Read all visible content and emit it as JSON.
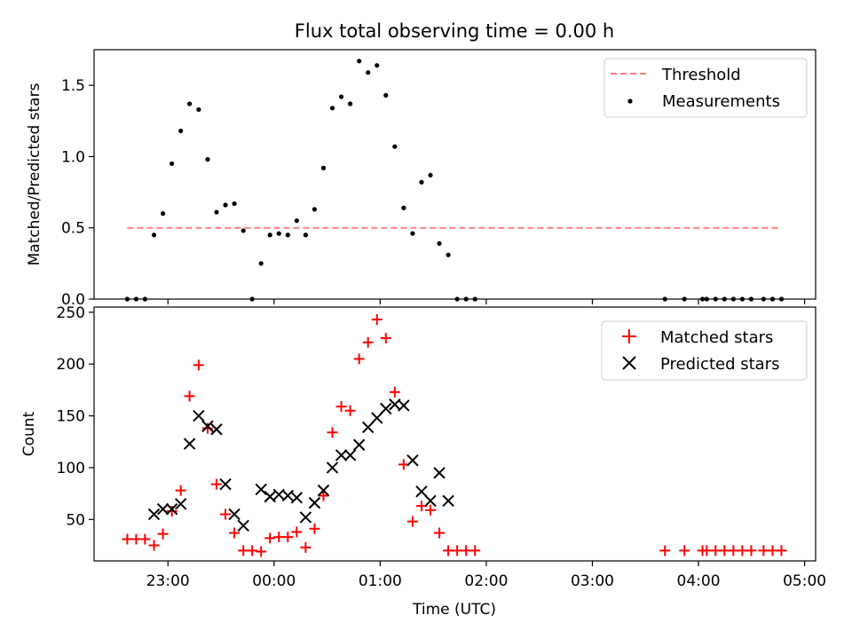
{
  "figure": {
    "title": "Flux total observing time = 0.00 h",
    "xlabel": "Time (UTC)",
    "x_ticks": [
      {
        "t": 22.9962,
        "label": "23:00"
      },
      {
        "t": 23.9962,
        "label": "00:00"
      },
      {
        "t": 24.9962,
        "label": "01:00"
      },
      {
        "t": 25.9962,
        "label": "02:00"
      },
      {
        "t": 26.9962,
        "label": "03:00"
      },
      {
        "t": 27.9962,
        "label": "04:00"
      },
      {
        "t": 28.9962,
        "label": "05:00"
      }
    ],
    "xlim": [
      22.3,
      29.1
    ]
  },
  "chart_data": [
    {
      "type": "scatter",
      "ylabel": "Matched/Predicted stars",
      "ylim": [
        0,
        1.75
      ],
      "y_ticks": [
        0.0,
        0.5,
        1.0,
        1.5
      ],
      "y_tick_labels": [
        "0.0",
        "0.5",
        "1.0",
        "1.5"
      ],
      "legend_position": "top-right",
      "threshold": {
        "name": "Threshold",
        "y": 0.5,
        "x": [
          22.613,
          28.78
        ],
        "color": "#ff7f7f"
      },
      "series": [
        {
          "name": "Measurements",
          "color": "#000000",
          "points": [
            [
              22.613,
              0.0
            ],
            [
              22.697,
              0.0
            ],
            [
              22.78,
              0.0
            ],
            [
              22.865,
              0.45
            ],
            [
              22.949,
              0.6
            ],
            [
              23.033,
              0.95
            ],
            [
              23.117,
              1.18
            ],
            [
              23.2,
              1.37
            ],
            [
              23.286,
              1.33
            ],
            [
              23.37,
              0.98
            ],
            [
              23.454,
              0.61
            ],
            [
              23.538,
              0.66
            ],
            [
              23.622,
              0.67
            ],
            [
              23.707,
              0.48
            ],
            [
              23.79,
              0.0
            ],
            [
              23.874,
              0.25
            ],
            [
              23.958,
              0.45
            ],
            [
              24.042,
              0.46
            ],
            [
              24.126,
              0.45
            ],
            [
              24.21,
              0.55
            ],
            [
              24.294,
              0.45
            ],
            [
              24.378,
              0.63
            ],
            [
              24.462,
              0.92
            ],
            [
              24.546,
              1.34
            ],
            [
              24.63,
              1.42
            ],
            [
              24.714,
              1.37
            ],
            [
              24.798,
              1.67
            ],
            [
              24.882,
              1.59
            ],
            [
              24.966,
              1.64
            ],
            [
              25.05,
              1.43
            ],
            [
              25.134,
              1.07
            ],
            [
              25.218,
              0.64
            ],
            [
              25.302,
              0.46
            ],
            [
              25.386,
              0.82
            ],
            [
              25.47,
              0.87
            ],
            [
              25.554,
              0.39
            ],
            [
              25.638,
              0.31
            ],
            [
              25.722,
              0.0
            ],
            [
              25.806,
              0.0
            ],
            [
              25.89,
              0.0
            ],
            [
              27.68,
              0.0
            ],
            [
              27.864,
              0.0
            ],
            [
              28.034,
              0.0
            ],
            [
              28.074,
              0.0
            ],
            [
              28.157,
              0.0
            ],
            [
              28.241,
              0.0
            ],
            [
              28.325,
              0.0
            ],
            [
              28.409,
              0.0
            ],
            [
              28.493,
              0.0
            ],
            [
              28.61,
              0.0
            ],
            [
              28.694,
              0.0
            ],
            [
              28.778,
              0.0
            ]
          ]
        }
      ]
    },
    {
      "type": "scatter",
      "ylabel": "Count",
      "ylim": [
        10,
        255
      ],
      "y_ticks": [
        50,
        100,
        150,
        200,
        250
      ],
      "y_tick_labels": [
        "50",
        "100",
        "150",
        "200",
        "250"
      ],
      "legend_position": "top-right",
      "series": [
        {
          "name": "Matched stars",
          "marker": "plus",
          "color": "#ff0000",
          "points": [
            [
              22.613,
              31
            ],
            [
              22.697,
              31
            ],
            [
              22.78,
              31
            ],
            [
              22.865,
              25
            ],
            [
              22.949,
              36
            ],
            [
              23.033,
              58
            ],
            [
              23.117,
              78
            ],
            [
              23.2,
              169
            ],
            [
              23.286,
              199
            ],
            [
              23.37,
              138
            ],
            [
              23.454,
              84
            ],
            [
              23.538,
              55
            ],
            [
              23.622,
              37
            ],
            [
              23.707,
              20
            ],
            [
              23.79,
              20
            ],
            [
              23.874,
              19
            ],
            [
              23.958,
              32
            ],
            [
              24.042,
              33
            ],
            [
              24.126,
              33
            ],
            [
              24.21,
              38
            ],
            [
              24.294,
              23
            ],
            [
              24.378,
              41
            ],
            [
              24.462,
              73
            ],
            [
              24.546,
              134
            ],
            [
              24.63,
              159
            ],
            [
              24.714,
              155
            ],
            [
              24.798,
              205
            ],
            [
              24.882,
              221
            ],
            [
              24.966,
              243
            ],
            [
              25.05,
              225
            ],
            [
              25.134,
              173
            ],
            [
              25.218,
              103
            ],
            [
              25.302,
              48
            ],
            [
              25.386,
              63
            ],
            [
              25.47,
              59
            ],
            [
              25.554,
              37
            ],
            [
              25.638,
              20
            ],
            [
              25.722,
              20
            ],
            [
              25.806,
              20
            ],
            [
              25.89,
              20
            ],
            [
              27.68,
              20
            ],
            [
              27.864,
              20
            ],
            [
              28.034,
              20
            ],
            [
              28.074,
              20
            ],
            [
              28.157,
              20
            ],
            [
              28.241,
              20
            ],
            [
              28.325,
              20
            ],
            [
              28.409,
              20
            ],
            [
              28.493,
              20
            ],
            [
              28.61,
              20
            ],
            [
              28.694,
              20
            ],
            [
              28.778,
              20
            ]
          ]
        },
        {
          "name": "Predicted stars",
          "marker": "x",
          "color": "#000000",
          "points": [
            [
              22.865,
              55
            ],
            [
              22.949,
              60
            ],
            [
              23.033,
              60
            ],
            [
              23.117,
              65
            ],
            [
              23.2,
              123
            ],
            [
              23.286,
              150
            ],
            [
              23.37,
              140
            ],
            [
              23.454,
              137
            ],
            [
              23.538,
              84
            ],
            [
              23.622,
              55
            ],
            [
              23.707,
              44
            ],
            [
              23.874,
              79
            ],
            [
              23.958,
              72
            ],
            [
              24.042,
              74
            ],
            [
              24.126,
              73
            ],
            [
              24.21,
              71
            ],
            [
              24.294,
              52
            ],
            [
              24.378,
              66
            ],
            [
              24.462,
              78
            ],
            [
              24.546,
              100
            ],
            [
              24.63,
              112
            ],
            [
              24.714,
              112
            ],
            [
              24.798,
              122
            ],
            [
              24.882,
              139
            ],
            [
              24.966,
              148
            ],
            [
              25.05,
              157
            ],
            [
              25.134,
              161
            ],
            [
              25.218,
              160
            ],
            [
              25.302,
              107
            ],
            [
              25.386,
              77
            ],
            [
              25.47,
              68
            ],
            [
              25.554,
              95
            ],
            [
              25.638,
              68
            ]
          ]
        }
      ]
    }
  ]
}
